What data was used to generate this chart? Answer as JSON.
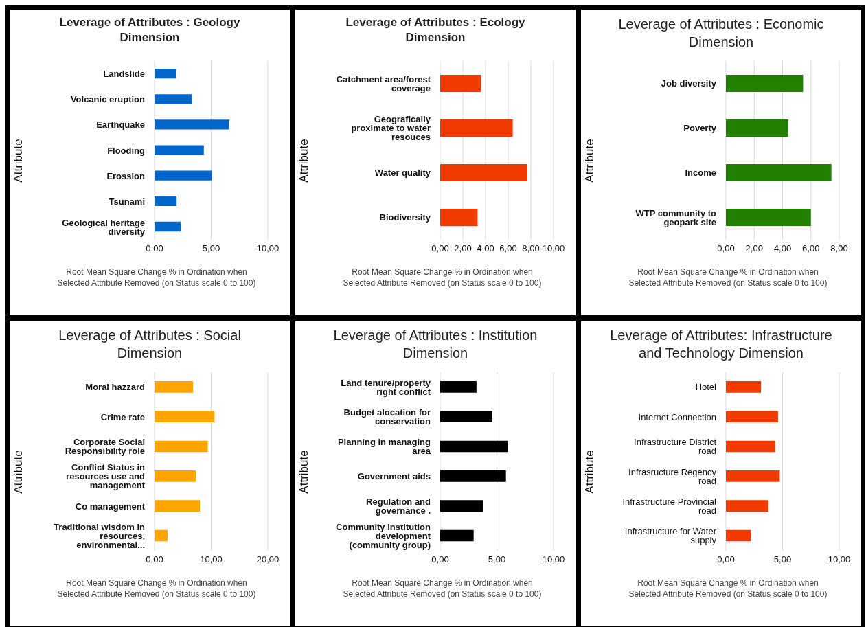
{
  "chart_data": [
    {
      "type": "bar",
      "orientation": "horizontal",
      "title": "Leverage of Attributes : Geology Dimension",
      "xlabel": "Root Mean Square Change % in Ordination when Selected Attribute Removed (on Status scale 0 to 100)",
      "ylabel": "Attribute",
      "categories": [
        "Landslide",
        "Volcanic eruption",
        "Earthquake",
        "Flooding",
        "Erossion",
        "Tsunami",
        "Geological heritage diversity"
      ],
      "values": [
        1.9,
        3.3,
        6.6,
        4.35,
        5.05,
        1.95,
        2.3
      ],
      "color": "#0066cc",
      "xlim": [
        0,
        10
      ],
      "xticks": [
        {
          "value": 0,
          "label": "0,00"
        },
        {
          "value": 5,
          "label": "5,00"
        },
        {
          "value": 10,
          "label": "10,00"
        }
      ],
      "grid": "x",
      "legend": false
    },
    {
      "type": "bar",
      "orientation": "horizontal",
      "title": "Leverage of Attributes : Ecology Dimension",
      "xlabel": "Root Mean Square Change % in Ordination when Selected Attribute Removed (on Status scale 0 to 100)",
      "ylabel": "Attribute",
      "categories": [
        "Catchment area/forest coverage",
        "Geografically proximate to water resouces",
        "Water quality",
        "Biodiversity"
      ],
      "values": [
        3.6,
        6.4,
        7.7,
        3.3
      ],
      "color": "#f03a00",
      "xlim": [
        0,
        10
      ],
      "xticks": [
        {
          "value": 0,
          "label": "0,00"
        },
        {
          "value": 2,
          "label": "2,00"
        },
        {
          "value": 4,
          "label": "4,00"
        },
        {
          "value": 6,
          "label": "6,00"
        },
        {
          "value": 8,
          "label": "8,00"
        },
        {
          "value": 10,
          "label": "10,00"
        }
      ],
      "grid": "x",
      "legend": false
    },
    {
      "type": "bar",
      "orientation": "horizontal",
      "title": "Leverage of Attributes : Economic Dimension",
      "xlabel": "Root Mean Square Change % in Ordination when Selected Attribute Removed (on Status scale 0 to 100)",
      "ylabel": "Attribute",
      "categories": [
        "Job diversity",
        "Poverty",
        "Income",
        "WTP community to geopark site"
      ],
      "values": [
        5.45,
        4.4,
        7.45,
        6.0
      ],
      "color": "#218000",
      "xlim": [
        0,
        8
      ],
      "xticks": [
        {
          "value": 0,
          "label": "0,00"
        },
        {
          "value": 2,
          "label": "2,00"
        },
        {
          "value": 4,
          "label": "4,00"
        },
        {
          "value": 6,
          "label": "6,00"
        },
        {
          "value": 8,
          "label": "8,00"
        }
      ],
      "grid": "x",
      "legend": false
    },
    {
      "type": "bar",
      "orientation": "horizontal",
      "title": "Leverage of Attributes : Social Dimension",
      "xlabel": "Root Mean Square Change % in Ordination when Selected Attribute Removed (on Status scale 0 to 100)",
      "ylabel": "Attribute",
      "categories": [
        "Moral hazzard",
        "Crime rate",
        "Corporate Social Responsibility role",
        "Conflict Status in resources use and management",
        "Co management",
        "Traditional wisdom in resources, environmental..."
      ],
      "values": [
        6.8,
        10.6,
        9.4,
        7.3,
        8.0,
        2.3
      ],
      "color": "#ffa500",
      "xlim": [
        0,
        20
      ],
      "xticks": [
        {
          "value": 0,
          "label": "0,00"
        },
        {
          "value": 10,
          "label": "10,00"
        },
        {
          "value": 20,
          "label": "20,00"
        }
      ],
      "grid": "x",
      "legend": false
    },
    {
      "type": "bar",
      "orientation": "horizontal",
      "title": "Leverage of Attributes : Institution Dimension",
      "xlabel": "Root Mean Square Change % in Ordination when Selected Attribute Removed (on Status scale 0 to 100)",
      "ylabel": "Attribute",
      "categories": [
        "Land tenure/property right conflict",
        "Budget alocation for conservation",
        "Planning in managing area",
        "Government aids",
        "Regulation and governance .",
        "Community institution development (community group)"
      ],
      "values": [
        3.2,
        4.6,
        6.0,
        5.8,
        3.8,
        2.95
      ],
      "color": "#000000",
      "xlim": [
        0,
        10
      ],
      "xticks": [
        {
          "value": 0,
          "label": "0,00"
        },
        {
          "value": 5,
          "label": "5,00"
        },
        {
          "value": 10,
          "label": "10,00"
        }
      ],
      "grid": "x",
      "legend": false
    },
    {
      "type": "bar",
      "orientation": "horizontal",
      "title": "Leverage of Attributes: Infrastructure and Technology Dimension",
      "xlabel": "Root Mean Square Change % in Ordination when Selected Attribute Removed (on Status scale 0 to 100)",
      "ylabel": "Attribute",
      "categories": [
        "Hotel",
        "Internet Connection",
        "Infrastructure District road",
        "Infrasructure Regency road",
        "Infrastructure Provincial road",
        "Infrastructure for Water supply"
      ],
      "values": [
        3.1,
        4.6,
        4.35,
        4.75,
        3.75,
        2.2
      ],
      "color": "#f03a00",
      "xlim": [
        0,
        10
      ],
      "xticks": [
        {
          "value": 0,
          "label": "0,00"
        },
        {
          "value": 5,
          "label": "5,00"
        },
        {
          "value": 10,
          "label": "10,00"
        }
      ],
      "grid": "x",
      "legend": false
    }
  ]
}
